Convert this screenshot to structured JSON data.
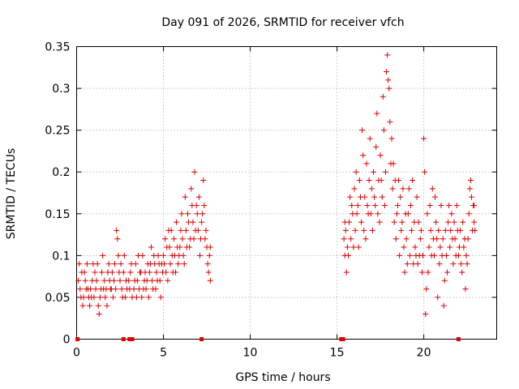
{
  "chart_data": {
    "type": "scatter",
    "title": "Day 091 of 2026, SRMTID for receiver vfch",
    "xlabel": "GPS time / hours",
    "ylabel": "SRMTID / TECUs",
    "xlim": [
      0,
      24.2
    ],
    "ylim": [
      0,
      0.35
    ],
    "xticks": [
      0,
      5,
      10,
      15,
      20
    ],
    "xtick_labels": [
      "0",
      "5",
      "10",
      "15",
      "20"
    ],
    "yticks": [
      0,
      0.05,
      0.1,
      0.15,
      0.2,
      0.25,
      0.3,
      0.35
    ],
    "ytick_labels": [
      "0",
      "0.05",
      "0.1",
      "0.15",
      "0.2",
      "0.25",
      "0.3",
      "0.35"
    ],
    "grid": true,
    "marker": "+",
    "colors": {
      "points": "#e00000",
      "grid": "#a0a0a0",
      "axis": "#000000"
    },
    "series": [
      {
        "name": "SRMTID",
        "points": [
          [
            0.1,
            0.07
          ],
          [
            0.15,
            0.09
          ],
          [
            0.2,
            0.06
          ],
          [
            0.3,
            0.08
          ],
          [
            0.35,
            0.04
          ],
          [
            0.4,
            0.05
          ],
          [
            0.5,
            0.07
          ],
          [
            0.55,
            0.06
          ],
          [
            0.6,
            0.09
          ],
          [
            0.7,
            0.05
          ],
          [
            0.75,
            0.04
          ],
          [
            0.8,
            0.06
          ],
          [
            0.9,
            0.07
          ],
          [
            1.0,
            0.05
          ],
          [
            1.05,
            0.08
          ],
          [
            1.1,
            0.06
          ],
          [
            1.2,
            0.09
          ],
          [
            1.25,
            0.04
          ],
          [
            1.3,
            0.03
          ],
          [
            1.4,
            0.06
          ],
          [
            1.45,
            0.08
          ],
          [
            1.5,
            0.1
          ],
          [
            1.6,
            0.07
          ],
          [
            1.65,
            0.05
          ],
          [
            1.7,
            0.06
          ],
          [
            1.8,
            0.08
          ],
          [
            1.85,
            0.09
          ],
          [
            1.9,
            0.07
          ],
          [
            2.0,
            0.06
          ],
          [
            2.05,
            0.08
          ],
          [
            2.1,
            0.05
          ],
          [
            2.2,
            0.09
          ],
          [
            2.3,
            0.13
          ],
          [
            2.35,
            0.12
          ],
          [
            2.4,
            0.1
          ],
          [
            2.45,
            0.08
          ],
          [
            2.5,
            0.07
          ],
          [
            2.6,
            0.06
          ],
          [
            2.7,
            0.08
          ],
          [
            2.8,
            0.05
          ],
          [
            2.9,
            0.06
          ],
          [
            3.0,
            0.07
          ],
          [
            3.1,
            0.08
          ],
          [
            3.2,
            0.05
          ],
          [
            3.3,
            0.06
          ],
          [
            3.4,
            0.09
          ],
          [
            3.5,
            0.07
          ],
          [
            3.6,
            0.06
          ],
          [
            3.7,
            0.08
          ],
          [
            3.75,
            0.05
          ],
          [
            3.8,
            0.1
          ],
          [
            3.9,
            0.07
          ],
          [
            4.0,
            0.06
          ],
          [
            4.1,
            0.09
          ],
          [
            4.2,
            0.08
          ],
          [
            4.3,
            0.11
          ],
          [
            4.35,
            0.07
          ],
          [
            4.4,
            0.06
          ],
          [
            4.5,
            0.09
          ],
          [
            4.6,
            0.08
          ],
          [
            4.7,
            0.1
          ],
          [
            4.8,
            0.07
          ],
          [
            4.85,
            0.05
          ],
          [
            4.9,
            0.09
          ],
          [
            5.0,
            0.1
          ],
          [
            5.1,
            0.12
          ],
          [
            5.15,
            0.08
          ],
          [
            5.2,
            0.11
          ],
          [
            5.3,
            0.13
          ],
          [
            5.4,
            0.09
          ],
          [
            5.5,
            0.1
          ],
          [
            5.6,
            0.12
          ],
          [
            5.7,
            0.08
          ],
          [
            5.75,
            0.14
          ],
          [
            5.8,
            0.11
          ],
          [
            5.9,
            0.1
          ],
          [
            6.0,
            0.13
          ],
          [
            6.1,
            0.12
          ],
          [
            6.2,
            0.09
          ],
          [
            6.25,
            0.17
          ],
          [
            6.3,
            0.13
          ],
          [
            6.4,
            0.15
          ],
          [
            6.5,
            0.11
          ],
          [
            6.6,
            0.18
          ],
          [
            6.7,
            0.14
          ],
          [
            6.75,
            0.12
          ],
          [
            6.8,
            0.2
          ],
          [
            6.9,
            0.16
          ],
          [
            7.0,
            0.13
          ],
          [
            7.1,
            0.1
          ],
          [
            7.2,
            0.14
          ],
          [
            7.3,
            0.19
          ],
          [
            7.35,
            0.16
          ],
          [
            7.4,
            0.12
          ],
          [
            7.5,
            0.11
          ],
          [
            7.55,
            0.09
          ],
          [
            7.6,
            0.08
          ],
          [
            7.65,
            0.1
          ],
          [
            0.25,
            0.05
          ],
          [
            0.45,
            0.08
          ],
          [
            0.65,
            0.06
          ],
          [
            0.85,
            0.05
          ],
          [
            0.95,
            0.09
          ],
          [
            1.15,
            0.07
          ],
          [
            1.35,
            0.05
          ],
          [
            1.55,
            0.06
          ],
          [
            1.75,
            0.04
          ],
          [
            1.95,
            0.06
          ],
          [
            2.15,
            0.07
          ],
          [
            2.25,
            0.06
          ],
          [
            2.55,
            0.09
          ],
          [
            2.65,
            0.05
          ],
          [
            2.75,
            0.1
          ],
          [
            2.85,
            0.07
          ],
          [
            3.05,
            0.06
          ],
          [
            3.15,
            0.09
          ],
          [
            3.35,
            0.07
          ],
          [
            3.45,
            0.05
          ],
          [
            3.55,
            0.1
          ],
          [
            3.65,
            0.08
          ],
          [
            3.85,
            0.06
          ],
          [
            3.95,
            0.08
          ],
          [
            4.05,
            0.07
          ],
          [
            4.15,
            0.05
          ],
          [
            4.25,
            0.09
          ],
          [
            4.45,
            0.1
          ],
          [
            4.55,
            0.06
          ],
          [
            4.65,
            0.07
          ],
          [
            4.75,
            0.09
          ],
          [
            4.95,
            0.08
          ],
          [
            5.05,
            0.09
          ],
          [
            5.25,
            0.07
          ],
          [
            5.35,
            0.11
          ],
          [
            5.45,
            0.13
          ],
          [
            5.55,
            0.08
          ],
          [
            5.65,
            0.1
          ],
          [
            5.85,
            0.09
          ],
          [
            5.95,
            0.11
          ],
          [
            6.05,
            0.15
          ],
          [
            6.15,
            0.1
          ],
          [
            6.35,
            0.11
          ],
          [
            6.45,
            0.14
          ],
          [
            6.55,
            0.12
          ],
          [
            6.65,
            0.16
          ],
          [
            6.85,
            0.13
          ],
          [
            6.95,
            0.15
          ],
          [
            7.05,
            0.17
          ],
          [
            7.15,
            0.12
          ],
          [
            7.25,
            0.15
          ],
          [
            7.45,
            0.13
          ],
          [
            7.7,
            0.07
          ],
          [
            7.7,
            0.11
          ],
          [
            15.4,
            0.12
          ],
          [
            15.45,
            0.1
          ],
          [
            15.5,
            0.13
          ],
          [
            15.55,
            0.08
          ],
          [
            15.6,
            0.11
          ],
          [
            15.7,
            0.14
          ],
          [
            15.75,
            0.17
          ],
          [
            15.8,
            0.12
          ],
          [
            15.9,
            0.15
          ],
          [
            16.0,
            0.18
          ],
          [
            16.05,
            0.13
          ],
          [
            16.1,
            0.2
          ],
          [
            16.2,
            0.16
          ],
          [
            16.25,
            0.11
          ],
          [
            16.3,
            0.19
          ],
          [
            16.4,
            0.14
          ],
          [
            16.45,
            0.25
          ],
          [
            16.5,
            0.22
          ],
          [
            16.6,
            0.17
          ],
          [
            16.65,
            0.12
          ],
          [
            16.7,
            0.21
          ],
          [
            16.8,
            0.15
          ],
          [
            16.85,
            0.19
          ],
          [
            16.9,
            0.24
          ],
          [
            17.0,
            0.18
          ],
          [
            17.05,
            0.13
          ],
          [
            17.1,
            0.2
          ],
          [
            17.2,
            0.16
          ],
          [
            17.25,
            0.23
          ],
          [
            17.3,
            0.27
          ],
          [
            17.4,
            0.19
          ],
          [
            17.45,
            0.14
          ],
          [
            17.5,
            0.22
          ],
          [
            17.6,
            0.17
          ],
          [
            17.65,
            0.29
          ],
          [
            17.7,
            0.25
          ],
          [
            17.8,
            0.2
          ],
          [
            17.85,
            0.32
          ],
          [
            17.9,
            0.34
          ],
          [
            17.95,
            0.31
          ],
          [
            18.0,
            0.3
          ],
          [
            18.05,
            0.26
          ],
          [
            18.1,
            0.21
          ],
          [
            18.15,
            0.24
          ],
          [
            18.2,
            0.18
          ],
          [
            18.3,
            0.14
          ],
          [
            18.35,
            0.19
          ],
          [
            18.4,
            0.12
          ],
          [
            18.5,
            0.16
          ],
          [
            18.6,
            0.1
          ],
          [
            18.7,
            0.13
          ],
          [
            18.8,
            0.18
          ],
          [
            18.85,
            0.11
          ],
          [
            18.9,
            0.08
          ],
          [
            19.0,
            0.12
          ],
          [
            19.1,
            0.15
          ],
          [
            19.2,
            0.1
          ],
          [
            19.3,
            0.13
          ],
          [
            19.4,
            0.09
          ],
          [
            19.5,
            0.11
          ],
          [
            19.6,
            0.17
          ],
          [
            19.7,
            0.14
          ],
          [
            19.8,
            0.12
          ],
          [
            19.9,
            0.08
          ],
          [
            20.0,
            0.24
          ],
          [
            20.05,
            0.2
          ],
          [
            20.1,
            0.03
          ],
          [
            20.15,
            0.06
          ],
          [
            20.2,
            0.15
          ],
          [
            20.3,
            0.11
          ],
          [
            20.4,
            0.13
          ],
          [
            20.5,
            0.18
          ],
          [
            20.6,
            0.1
          ],
          [
            20.7,
            0.14
          ],
          [
            20.8,
            0.05
          ],
          [
            20.9,
            0.09
          ],
          [
            21.0,
            0.16
          ],
          [
            21.1,
            0.12
          ],
          [
            21.2,
            0.07
          ],
          [
            21.3,
            0.1
          ],
          [
            21.4,
            0.14
          ],
          [
            21.5,
            0.11
          ],
          [
            21.6,
            0.15
          ],
          [
            21.7,
            0.09
          ],
          [
            21.8,
            0.12
          ],
          [
            21.9,
            0.16
          ],
          [
            22.0,
            0.1
          ],
          [
            22.1,
            0.13
          ],
          [
            22.2,
            0.08
          ],
          [
            22.3,
            0.11
          ],
          [
            22.4,
            0.06
          ],
          [
            22.5,
            0.09
          ],
          [
            22.6,
            0.15
          ],
          [
            22.7,
            0.19
          ],
          [
            22.75,
            0.17
          ],
          [
            22.8,
            0.13
          ],
          [
            22.85,
            0.16
          ],
          [
            22.9,
            0.14
          ],
          [
            15.45,
            0.14
          ],
          [
            15.65,
            0.1
          ],
          [
            15.85,
            0.16
          ],
          [
            15.95,
            0.11
          ],
          [
            16.15,
            0.15
          ],
          [
            16.35,
            0.17
          ],
          [
            16.55,
            0.13
          ],
          [
            16.75,
            0.16
          ],
          [
            16.95,
            0.15
          ],
          [
            17.15,
            0.17
          ],
          [
            17.35,
            0.15
          ],
          [
            17.55,
            0.19
          ],
          [
            17.75,
            0.16
          ],
          [
            18.25,
            0.21
          ],
          [
            18.45,
            0.15
          ],
          [
            18.55,
            0.19
          ],
          [
            18.65,
            0.17
          ],
          [
            18.75,
            0.14
          ],
          [
            18.95,
            0.15
          ],
          [
            19.05,
            0.09
          ],
          [
            19.15,
            0.18
          ],
          [
            19.25,
            0.16
          ],
          [
            19.35,
            0.19
          ],
          [
            19.45,
            0.14
          ],
          [
            19.55,
            0.1
          ],
          [
            19.65,
            0.09
          ],
          [
            19.75,
            0.1
          ],
          [
            19.85,
            0.13
          ],
          [
            19.95,
            0.1
          ],
          [
            20.25,
            0.08
          ],
          [
            20.35,
            0.16
          ],
          [
            20.45,
            0.1
          ],
          [
            20.55,
            0.12
          ],
          [
            20.65,
            0.17
          ],
          [
            20.75,
            0.12
          ],
          [
            20.85,
            0.13
          ],
          [
            20.95,
            0.11
          ],
          [
            21.05,
            0.1
          ],
          [
            21.15,
            0.04
          ],
          [
            21.25,
            0.13
          ],
          [
            21.35,
            0.08
          ],
          [
            21.45,
            0.16
          ],
          [
            21.55,
            0.13
          ],
          [
            21.65,
            0.12
          ],
          [
            21.75,
            0.14
          ],
          [
            21.85,
            0.1
          ],
          [
            21.95,
            0.13
          ],
          [
            22.05,
            0.11
          ],
          [
            22.15,
            0.09
          ],
          [
            22.25,
            0.14
          ],
          [
            22.35,
            0.12
          ],
          [
            22.45,
            0.1
          ],
          [
            22.55,
            0.12
          ],
          [
            22.65,
            0.18
          ],
          [
            22.95,
            0.13
          ],
          [
            22.9,
            0.16
          ]
        ]
      }
    ],
    "zero_markers": [
      0.05,
      2.7,
      3.05,
      3.2,
      7.2,
      15.25,
      15.35,
      22.0
    ]
  }
}
